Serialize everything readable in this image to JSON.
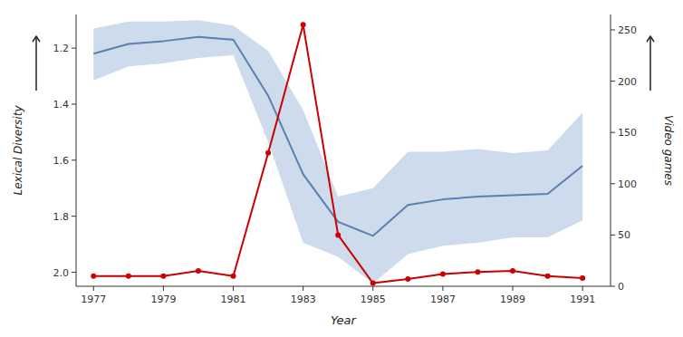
{
  "chart_data": {
    "type": "line",
    "x_label": "Year",
    "y_label": "Lexical Diversity",
    "y2_label": "Video games",
    "x": [
      1977,
      1978,
      1979,
      1980,
      1981,
      1982,
      1983,
      1984,
      1985,
      1986,
      1987,
      1988,
      1989,
      1990,
      1991
    ],
    "series": [
      {
        "type": "area",
        "color": "#aec3e0",
        "values": [
          1.13,
          1.105,
          1.105,
          1.1,
          1.12,
          1.21,
          1.42,
          1.73,
          1.7,
          1.57,
          1.57,
          1.56,
          1.575,
          1.565,
          1.43
        ],
        "lower": [
          1.315,
          1.265,
          1.255,
          1.235,
          1.225,
          1.535,
          1.895,
          1.945,
          2.04,
          1.935,
          1.905,
          1.895,
          1.875,
          1.875,
          1.815
        ]
      },
      {
        "type": "line",
        "color": "#5b7faf",
        "values": [
          1.22,
          1.185,
          1.175,
          1.16,
          1.17,
          1.37,
          1.65,
          1.82,
          1.87,
          1.76,
          1.74,
          1.73,
          1.725,
          1.72,
          1.62
        ]
      },
      {
        "type": "line",
        "color": "#cc0000",
        "marker": "circle",
        "axis": "y2",
        "values": [
          10,
          10,
          10,
          15,
          10,
          130,
          255,
          50,
          3,
          7,
          12,
          14,
          15,
          10,
          8
        ]
      }
    ],
    "xlim": [
      1976.5,
      1991.8
    ],
    "xticks": [
      1977,
      1979,
      1981,
      1983,
      1985,
      1987,
      1989,
      1991
    ],
    "ylim": [
      2.05,
      1.08
    ],
    "yticks": [
      1.2,
      1.4,
      1.6,
      1.8,
      {
        "value": 2.0,
        "label": "2.0"
      }
    ],
    "y2lim": [
      0,
      265
    ],
    "y2ticks": [
      0,
      50,
      100,
      150,
      200,
      250
    ],
    "grid": false
  }
}
